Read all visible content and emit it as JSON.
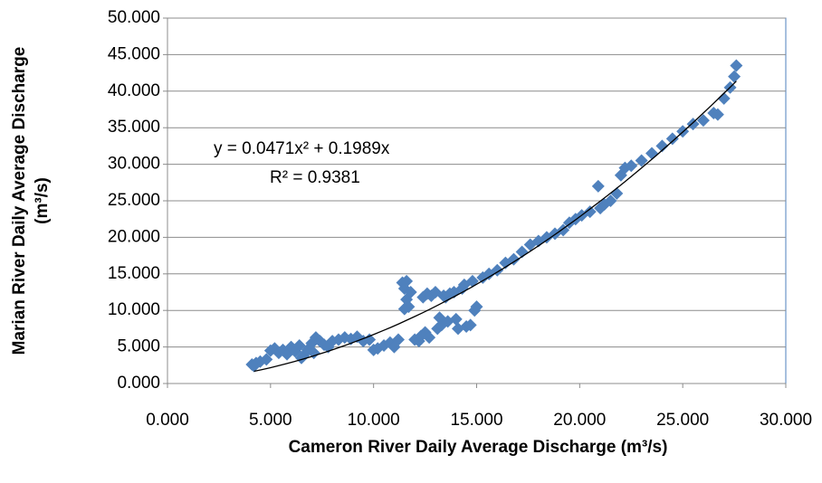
{
  "chart_data": {
    "type": "scatter",
    "x_label": "Cameron River Daily Average Discharge (m³/s)",
    "y_label": [
      "Marian River Daily Average Discharge",
      "(m³/s)"
    ],
    "xlim": [
      0,
      30
    ],
    "ylim": [
      0,
      50
    ],
    "xticks": [
      {
        "value": 0,
        "label": "0.000"
      },
      {
        "value": 5,
        "label": "5.000"
      },
      {
        "value": 10,
        "label": "10.000"
      },
      {
        "value": 15,
        "label": "15.000"
      },
      {
        "value": 20,
        "label": "20.000"
      },
      {
        "value": 25,
        "label": "25.000"
      },
      {
        "value": 30,
        "label": "30.000"
      }
    ],
    "yticks": [
      {
        "value": 0,
        "label": "0.000"
      },
      {
        "value": 5,
        "label": "5.000"
      },
      {
        "value": 10,
        "label": "10.000"
      },
      {
        "value": 15,
        "label": "15.000"
      },
      {
        "value": 20,
        "label": "20.000"
      },
      {
        "value": 25,
        "label": "25.000"
      },
      {
        "value": 30,
        "label": "30.000"
      },
      {
        "value": 35,
        "label": "35.000"
      },
      {
        "value": 40,
        "label": "40.000"
      },
      {
        "value": 45,
        "label": "45.000"
      },
      {
        "value": 50,
        "label": "50.000"
      }
    ],
    "grid": true,
    "color": "#4f81bd",
    "x": [
      4.1,
      4.3,
      4.5,
      4.2,
      4.8,
      5.0,
      5.2,
      5.4,
      5.6,
      5.8,
      6.0,
      6.2,
      6.4,
      6.6,
      6.8,
      7.0,
      7.2,
      7.4,
      6.5,
      7.1,
      7.6,
      7.8,
      8.0,
      8.3,
      8.6,
      8.9,
      9.2,
      9.5,
      9.8,
      10.0,
      10.2,
      10.5,
      10.8,
      11.0,
      11.2,
      11.4,
      11.5,
      11.6,
      11.7,
      11.8,
      11.5,
      11.6,
      12.0,
      12.2,
      12.4,
      12.6,
      12.8,
      12.3,
      12.5,
      12.7,
      13.0,
      13.2,
      13.4,
      13.1,
      13.3,
      13.5,
      13.7,
      13.9,
      14.1,
      14.3,
      14.5,
      14.7,
      14.9,
      13.6,
      14.0,
      14.4,
      14.8,
      15.0,
      15.3,
      15.6,
      16.0,
      16.4,
      16.8,
      17.2,
      17.6,
      18.0,
      18.4,
      18.8,
      19.2,
      19.5,
      19.8,
      20.1,
      20.5,
      20.9,
      21.0,
      21.2,
      21.5,
      21.8,
      22.0,
      22.2,
      22.5,
      23.0,
      23.5,
      24.0,
      24.5,
      25.0,
      25.5,
      26.0,
      26.5,
      26.7,
      27.0,
      27.3,
      27.5,
      27.6
    ],
    "values": [
      2.6,
      2.8,
      3.0,
      2.4,
      3.3,
      4.5,
      4.8,
      4.2,
      4.6,
      4.0,
      5.0,
      4.4,
      5.2,
      3.8,
      4.6,
      5.5,
      6.3,
      5.8,
      3.5,
      4.2,
      5.3,
      5.0,
      5.8,
      6.0,
      6.3,
      6.1,
      6.4,
      5.8,
      6.0,
      4.6,
      4.8,
      5.2,
      5.6,
      5.0,
      6.0,
      13.8,
      13.0,
      11.5,
      10.5,
      12.5,
      10.2,
      14.0,
      6.0,
      5.8,
      11.8,
      12.3,
      12.0,
      6.5,
      7.0,
      6.3,
      12.5,
      9.0,
      12.0,
      7.5,
      8.0,
      11.8,
      12.3,
      12.5,
      7.5,
      13.0,
      7.8,
      8.0,
      10.0,
      8.5,
      8.8,
      13.5,
      14.0,
      10.5,
      14.5,
      15.0,
      15.5,
      16.5,
      17.0,
      18.0,
      19.0,
      19.5,
      20.0,
      20.5,
      21.0,
      22.0,
      22.5,
      23.0,
      23.5,
      27.0,
      24.0,
      24.5,
      25.0,
      26.0,
      28.5,
      29.5,
      29.8,
      30.5,
      31.5,
      32.5,
      33.5,
      34.5,
      35.5,
      36.0,
      37.0,
      36.8,
      39.0,
      40.5,
      42.0,
      43.5
    ],
    "trendline": {
      "coefficients": [
        0.0471,
        0.1989
      ],
      "x_range": [
        4.2,
        27.6
      ],
      "color": "#000000",
      "equation": "y = 0.0471x² + 0.1989x",
      "r_squared": "R² = 0.9381"
    }
  }
}
